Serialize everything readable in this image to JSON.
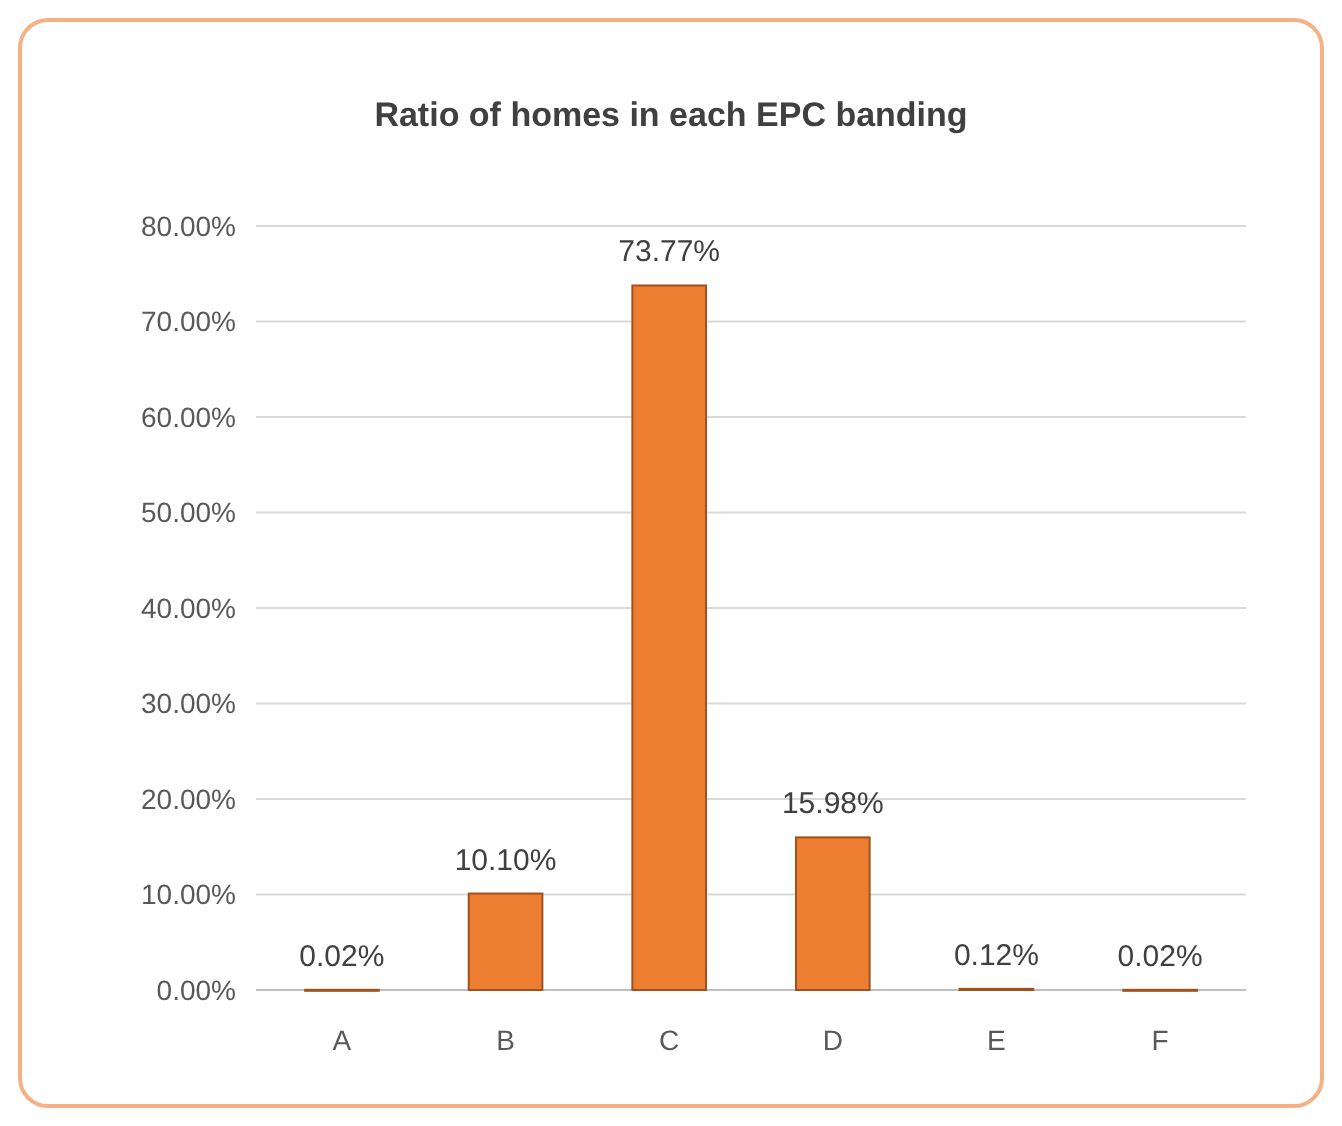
{
  "chart_data": {
    "type": "bar",
    "title": "Ratio of homes in each EPC banding",
    "categories": [
      "A",
      "B",
      "C",
      "D",
      "E",
      "F"
    ],
    "values": [
      0.02,
      10.1,
      73.77,
      15.98,
      0.12,
      0.02
    ],
    "value_labels": [
      "0.02%",
      "10.10%",
      "73.77%",
      "15.98%",
      "0.12%",
      "0.02%"
    ],
    "color": "#ed7d31",
    "ylim": [
      0,
      80
    ],
    "yticks": [
      {
        "value": 0,
        "label": "0.00%"
      },
      {
        "value": 10,
        "label": "10.00%"
      },
      {
        "value": 20,
        "label": "20.00%"
      },
      {
        "value": 30,
        "label": "30.00%"
      },
      {
        "value": 40,
        "label": "40.00%"
      },
      {
        "value": 50,
        "label": "50.00%"
      },
      {
        "value": 60,
        "label": "60.00%"
      },
      {
        "value": 70,
        "label": "70.00%"
      },
      {
        "value": 80,
        "label": "80.00%"
      }
    ],
    "grid": "y"
  }
}
